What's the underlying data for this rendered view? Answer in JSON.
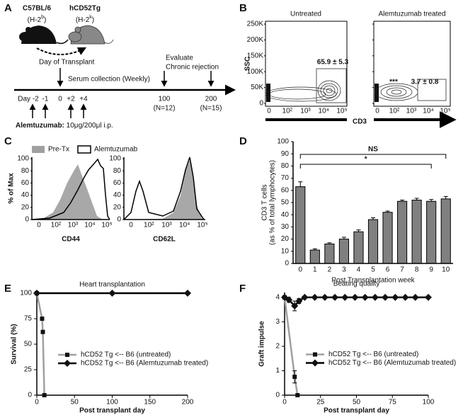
{
  "panels": {
    "A": {
      "label": "A",
      "donor": {
        "name": "C57BL/6",
        "hap": "(H-2",
        "sup": "b",
        "end": ")"
      },
      "recipient": {
        "name": "hCD52Tg",
        "hap": "(H-2",
        "sup": "k",
        "end": ")"
      },
      "transplant": "Day of Transplant",
      "serum": "Serum collection (Weekly)",
      "evaluate": [
        "Evaluate",
        "Chronic rejection"
      ],
      "timeline": [
        "Day -2",
        "-1",
        "0",
        "+2",
        "+4",
        "100",
        "200"
      ],
      "n": [
        "(N=12)",
        "(N=15)"
      ],
      "drug": "Alemtuzumab:",
      "dose": " 10μg/200μl i.p."
    },
    "B": {
      "label": "B",
      "titles": [
        "Untreated",
        "Alemtuzumab treated"
      ],
      "ylabel": "SSC",
      "xlabel": "CD3",
      "yticks": [
        "250K",
        "200K",
        "150K",
        "100K",
        "50K",
        "0"
      ],
      "xticks": [
        "0",
        "10²",
        "10³",
        "10⁴",
        "10⁵"
      ],
      "gates": [
        "65.9 ± 5.3",
        "3.7 ± 0.8"
      ],
      "stars": "***"
    },
    "C": {
      "label": "C",
      "legend": [
        "Pre-Tx",
        "Alemtuzumab"
      ],
      "ylabel": "% of Max",
      "xlabels": [
        "CD44",
        "CD62L"
      ],
      "yticks": [
        "100",
        "80",
        "60",
        "40",
        "20",
        "0"
      ],
      "xticks": [
        "0",
        "10²",
        "10³",
        "10⁴",
        "10⁵"
      ]
    },
    "D": {
      "label": "D"
    },
    "E": {
      "label": "E"
    },
    "F": {
      "label": "F"
    }
  },
  "chart_data": [
    {
      "type": "bar",
      "ylabel": [
        "CD3 T cells",
        "(as % of total lymphocytes)"
      ],
      "xlabel": "Post Transplantation week",
      "categories": [
        "0",
        "1",
        "2",
        "3",
        "4",
        "5",
        "6",
        "7",
        "8",
        "9",
        "10"
      ],
      "values": [
        63,
        11,
        16,
        20,
        26,
        36,
        42,
        51,
        52,
        51,
        53
      ],
      "errors": [
        4,
        1,
        1,
        1.5,
        1.5,
        1.5,
        1,
        1,
        1.5,
        1.5,
        2
      ],
      "color": "#808080",
      "ylim": [
        0,
        100
      ],
      "yticks": [
        0,
        10,
        20,
        30,
        40,
        50,
        60,
        70,
        80,
        90,
        100
      ],
      "annotations": [
        "NS",
        "*"
      ]
    },
    {
      "type": "line",
      "title": "Heart transplantation",
      "ylabel": "Survival (%)",
      "xlabel": "Post transplant day",
      "xlim": [
        0,
        200
      ],
      "xticks": [
        0,
        50,
        100,
        150,
        200
      ],
      "ylim": [
        0,
        100
      ],
      "yticks": [
        0,
        25,
        50,
        75,
        100
      ],
      "legend": "center-left",
      "series": [
        {
          "name": "hCD52 Tg <-- B6 (untreated)",
          "color": "#a0a0a0",
          "marker": "square",
          "x": [
            0,
            7,
            8,
            10
          ],
          "values": [
            100,
            75,
            62,
            0
          ]
        },
        {
          "name": "hCD52 Tg <-- B6 (Alemtuzumab treated)",
          "color": "#000000",
          "marker": "diamond",
          "x": [
            0,
            100,
            200
          ],
          "values": [
            100,
            100,
            100
          ]
        }
      ]
    },
    {
      "type": "line",
      "title": "Beating quality",
      "ylabel": "Graft impulse",
      "xlabel": "Post transplant day",
      "xlim": [
        0,
        100
      ],
      "xticks": [
        0,
        25,
        50,
        75,
        100
      ],
      "ylim": [
        0,
        4.2
      ],
      "yticks": [
        0,
        1,
        2,
        3,
        4
      ],
      "legend": "center-left",
      "series": [
        {
          "name": "hCD52 Tg <-- B6 (untreated)",
          "color": "#a0a0a0",
          "marker": "square",
          "x": [
            0,
            7,
            9
          ],
          "values": [
            4,
            0.75,
            0
          ],
          "errors": [
            0,
            0.25,
            0
          ]
        },
        {
          "name": "hCD52 Tg <-- B6 (Alemtuzumab treated)",
          "color": "#000000",
          "marker": "diamond",
          "x": [
            0,
            3,
            7,
            10,
            14,
            21,
            28,
            35,
            42,
            49,
            56,
            63,
            70,
            77,
            84,
            91,
            100
          ],
          "values": [
            4,
            3.9,
            3.65,
            3.85,
            4,
            4,
            4,
            4,
            4,
            4,
            4,
            4,
            4,
            4,
            4,
            4,
            4
          ],
          "errors": [
            0,
            0.1,
            0.2,
            0.1,
            0,
            0,
            0,
            0,
            0,
            0,
            0,
            0,
            0,
            0,
            0,
            0,
            0
          ]
        }
      ]
    }
  ]
}
